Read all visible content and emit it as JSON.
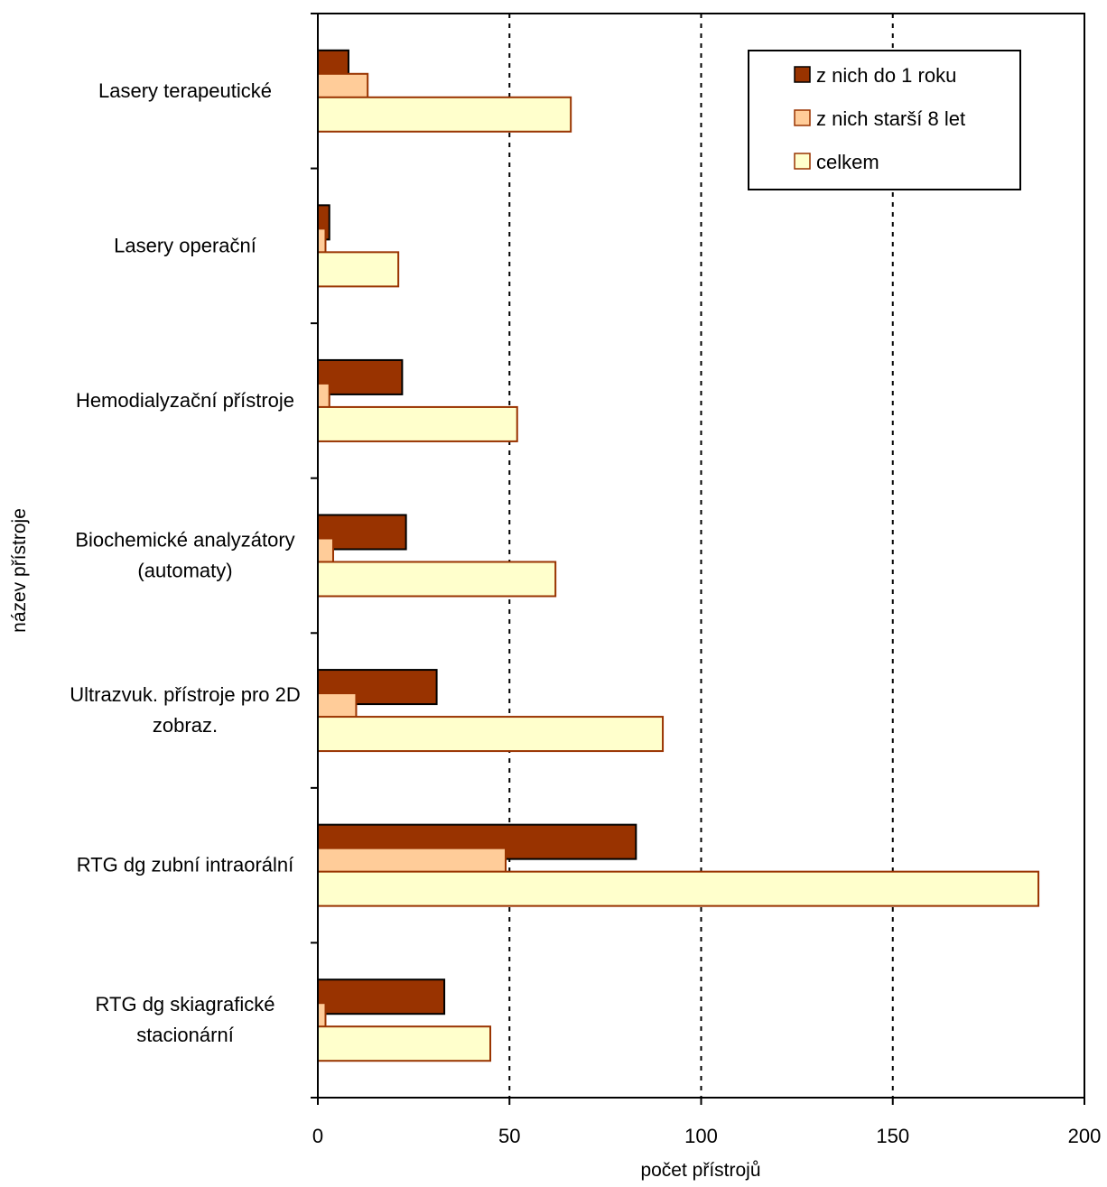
{
  "chart_data": {
    "type": "bar",
    "orientation": "horizontal",
    "categories": [
      [
        "Lasery terapeutické"
      ],
      [
        "Lasery operační"
      ],
      [
        "Hemodialyzační přístroje"
      ],
      [
        "Biochemické analyzátory",
        "(automaty)"
      ],
      [
        "Ultrazvuk. přístroje pro 2D",
        "zobraz."
      ],
      [
        "RTG dg zubní intraorální"
      ],
      [
        "RTG dg skiagrafické",
        "stacionární"
      ]
    ],
    "series": [
      {
        "name": "z nich do 1 roku",
        "color": "#993300",
        "values": [
          8,
          3,
          22,
          23,
          31,
          83,
          33
        ]
      },
      {
        "name": "z nich starší 8 let",
        "color": "#FFCC99",
        "values": [
          13,
          2,
          3,
          4,
          10,
          49,
          2
        ]
      },
      {
        "name": "celkem",
        "color": "#FFFFCC",
        "values": [
          66,
          21,
          52,
          62,
          90,
          188,
          45
        ]
      }
    ],
    "bar_stroke": "#993300",
    "xlabel": "počet přístrojů",
    "ylabel": "název přístroje",
    "xlim": [
      0,
      200
    ],
    "xticks": [
      0,
      50,
      100,
      150,
      200
    ],
    "grid": "vertical dotted",
    "legend": "top-right"
  }
}
